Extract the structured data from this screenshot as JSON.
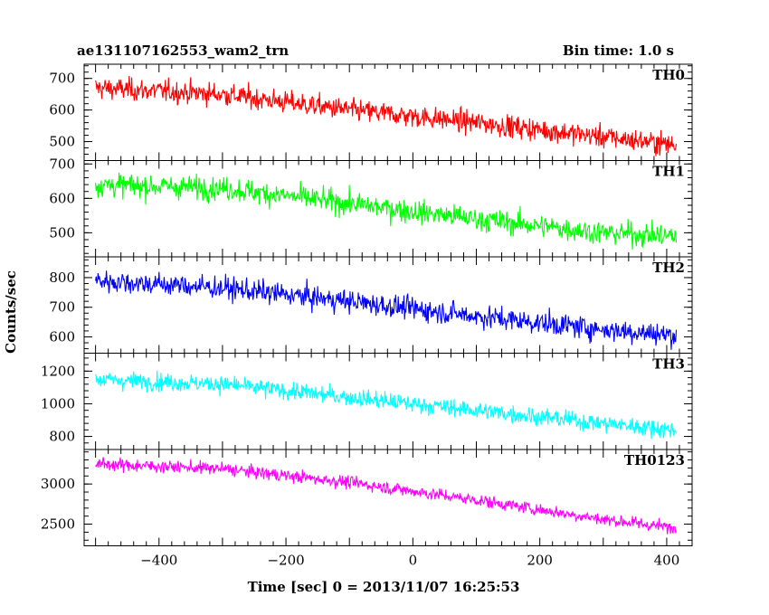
{
  "header": {
    "left": "ae131107162553_wam2_trn",
    "right": "Bin time: 1.0 s"
  },
  "xlabel": "Time [sec] 0 = 2013/11/07 16:25:53",
  "ylabel": "Counts/sec",
  "chart_data": {
    "type": "line",
    "x_range": [
      -500,
      415
    ],
    "xlim": [
      -518,
      440
    ],
    "x_ticks": [
      -400,
      -200,
      0,
      200,
      400
    ],
    "x_tick_labels": [
      "−400",
      "−200",
      "0",
      "200",
      "400"
    ],
    "bin_time_s": 1.0,
    "panels": [
      {
        "name": "TH0",
        "color": "#ff0000",
        "ylim": [
          440,
          745
        ],
        "y_ticks": [
          500,
          600,
          700
        ],
        "trend": [
          [
            -500,
            670
          ],
          [
            -300,
            650
          ],
          [
            -100,
            600
          ],
          [
            100,
            560
          ],
          [
            300,
            515
          ],
          [
            415,
            490
          ]
        ],
        "noise": 25
      },
      {
        "name": "TH1",
        "color": "#00ff00",
        "ylim": [
          430,
          710
        ],
        "y_ticks": [
          500,
          600,
          700
        ],
        "trend": [
          [
            -500,
            640
          ],
          [
            -300,
            630
          ],
          [
            -100,
            585
          ],
          [
            100,
            540
          ],
          [
            300,
            500
          ],
          [
            415,
            490
          ]
        ],
        "noise": 24
      },
      {
        "name": "TH2",
        "color": "#0000ff",
        "ylim": [
          545,
          870
        ],
        "y_ticks": [
          600,
          700,
          800
        ],
        "trend": [
          [
            -500,
            790
          ],
          [
            -300,
            765
          ],
          [
            -100,
            720
          ],
          [
            100,
            670
          ],
          [
            300,
            625
          ],
          [
            415,
            605
          ]
        ],
        "noise": 27
      },
      {
        "name": "TH3",
        "color": "#00ffff",
        "ylim": [
          720,
          1310
        ],
        "y_ticks": [
          800,
          1000,
          1200
        ],
        "trend": [
          [
            -500,
            1150
          ],
          [
            -300,
            1120
          ],
          [
            -100,
            1040
          ],
          [
            100,
            960
          ],
          [
            300,
            880
          ],
          [
            415,
            840
          ]
        ],
        "noise": 38
      },
      {
        "name": "TH0123",
        "color": "#ff00ff",
        "ylim": [
          2230,
          3430
        ],
        "y_ticks": [
          2500,
          3000
        ],
        "trend": [
          [
            -500,
            3250
          ],
          [
            -300,
            3190
          ],
          [
            -100,
            3020
          ],
          [
            100,
            2800
          ],
          [
            300,
            2560
          ],
          [
            415,
            2450
          ]
        ],
        "noise": 55
      }
    ]
  }
}
